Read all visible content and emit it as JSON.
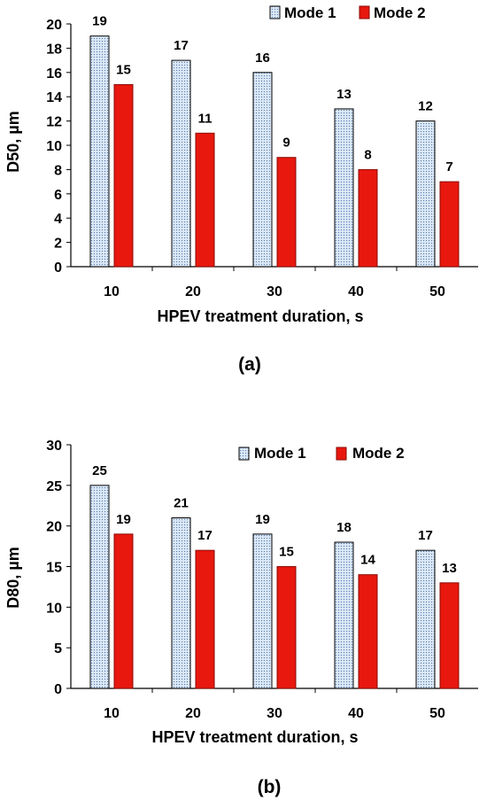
{
  "colors": {
    "mode1_fill": "#dbe8f6",
    "mode1_dot": "#5b7fb0",
    "mode2_fill": "#e8180e",
    "mode2_stroke": "#8a0a05"
  },
  "chart_data": [
    {
      "type": "bar",
      "panel_label": "(a)",
      "categories": [
        "10",
        "20",
        "30",
        "40",
        "50"
      ],
      "series": [
        {
          "name": "Mode 1",
          "values": [
            19,
            17,
            16,
            13,
            12
          ]
        },
        {
          "name": "Mode 2",
          "values": [
            15,
            11,
            9,
            8,
            7
          ]
        }
      ],
      "xlabel": "HPEV treatment duration, s",
      "ylabel": "D50, µm",
      "ylim": [
        0,
        20
      ],
      "yticks": [
        0,
        2,
        4,
        6,
        8,
        10,
        12,
        14,
        16,
        18,
        20
      ],
      "grid": false,
      "legend": "top-right",
      "data_labels": true
    },
    {
      "type": "bar",
      "panel_label": "(b)",
      "categories": [
        "10",
        "20",
        "30",
        "40",
        "50"
      ],
      "series": [
        {
          "name": "Mode 1",
          "values": [
            25,
            21,
            19,
            18,
            17
          ]
        },
        {
          "name": "Mode 2",
          "values": [
            19,
            17,
            15,
            14,
            13
          ]
        }
      ],
      "xlabel": "HPEV treatment duration, s",
      "ylabel": "D80, µm",
      "ylim": [
        0,
        30
      ],
      "yticks": [
        0,
        5,
        10,
        15,
        20,
        25,
        30
      ],
      "grid": false,
      "legend": "top-right",
      "data_labels": true
    }
  ]
}
